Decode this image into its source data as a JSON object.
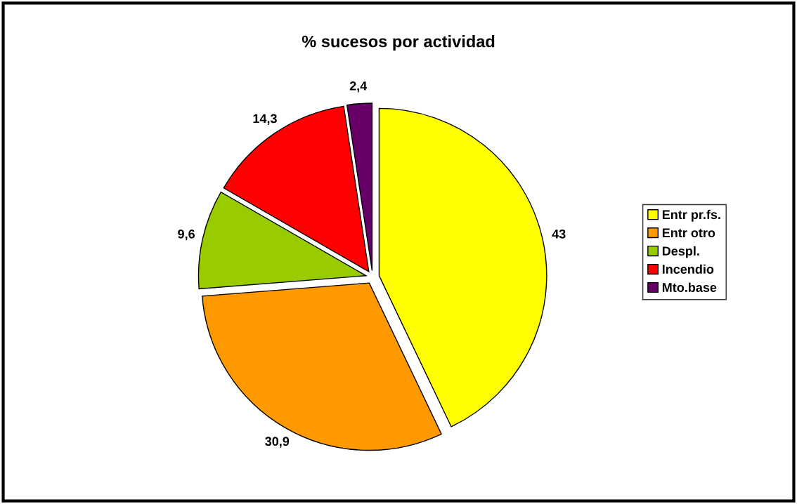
{
  "chart_data": {
    "type": "pie",
    "title": "% sucesos por actividad",
    "categories": [
      "Entr pr.fs.",
      "Entr otro",
      "Despl.",
      "Incendio",
      "Mto.base"
    ],
    "values": [
      43,
      30.9,
      9.6,
      14.3,
      2.4
    ],
    "value_labels": [
      "43",
      "30,9",
      "9,6",
      "14,3",
      "2,4"
    ],
    "colors": [
      "#ffff00",
      "#ff9900",
      "#99cc00",
      "#ff0000",
      "#660066"
    ],
    "legend": "right"
  }
}
